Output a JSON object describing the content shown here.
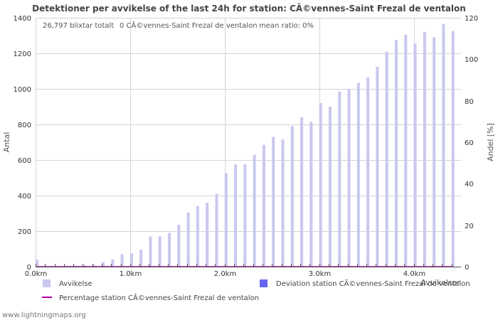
{
  "chart_data": {
    "type": "bar",
    "title": "Detektioner per avvikelse of the last 24h for station: CÃ©vennes-Saint Frezal de ventalon",
    "info": {
      "total": "26,797 blixtar totalt",
      "station": "0 CÃ©vennes-Saint Frezal de ventalon",
      "ratio": "mean ratio: 0%"
    },
    "xlabel": "Avvikelser",
    "ylabel": "Antal",
    "ylabel_right": "Andel [%]",
    "xlim": [
      0,
      4.5
    ],
    "ylim": [
      0,
      1400
    ],
    "ylim_right": [
      0,
      120
    ],
    "x_ticks": [
      {
        "value": 0,
        "label": "0.0km"
      },
      {
        "value": 1,
        "label": "1.0km"
      },
      {
        "value": 2,
        "label": "2.0km"
      },
      {
        "value": 3,
        "label": "3.0km"
      },
      {
        "value": 4,
        "label": "4.0km"
      }
    ],
    "y_ticks": [
      0,
      200,
      400,
      600,
      800,
      1000,
      1200,
      1400
    ],
    "y_ticks_right": [
      0,
      20,
      40,
      60,
      80,
      100,
      120
    ],
    "bar_width": 0.1,
    "x": [
      0.0,
      0.1,
      0.2,
      0.3,
      0.4,
      0.5,
      0.6,
      0.7,
      0.8,
      0.9,
      1.0,
      1.1,
      1.2,
      1.3,
      1.4,
      1.5,
      1.6,
      1.7,
      1.8,
      1.9,
      2.0,
      2.1,
      2.2,
      2.3,
      2.4,
      2.5,
      2.6,
      2.7,
      2.8,
      2.9,
      3.0,
      3.1,
      3.2,
      3.3,
      3.4,
      3.5,
      3.6,
      3.7,
      3.8,
      3.9,
      4.0,
      4.1,
      4.2,
      4.3,
      4.4
    ],
    "series": [
      {
        "name": "Avvikelse",
        "color": "#c8c8f0",
        "values": [
          40,
          3,
          3,
          4,
          6,
          10,
          12,
          25,
          42,
          70,
          75,
          95,
          170,
          170,
          190,
          235,
          305,
          340,
          360,
          410,
          525,
          575,
          575,
          630,
          685,
          730,
          715,
          790,
          840,
          815,
          920,
          900,
          985,
          1000,
          1035,
          1065,
          1125,
          1210,
          1275,
          1305,
          1255,
          1320,
          1290,
          1365,
          1325
        ]
      },
      {
        "name": "Deviation station CÃ©vennes-Saint Frezal de ventalon",
        "color": "#6464f0",
        "values": [
          0,
          0,
          0,
          0,
          0,
          0,
          0,
          0,
          0,
          0,
          0,
          0,
          0,
          0,
          0,
          0,
          0,
          0,
          0,
          0,
          0,
          0,
          0,
          0,
          0,
          0,
          0,
          0,
          0,
          0,
          0,
          0,
          0,
          0,
          0,
          0,
          0,
          0,
          0,
          0,
          0,
          0,
          0,
          0,
          0
        ]
      },
      {
        "name": "Percentage station CÃ©vennes-Saint Frezal de ventalon",
        "color": "#b000b0",
        "type": "line",
        "values": [
          0,
          0,
          0,
          0,
          0,
          0,
          0,
          0,
          0,
          0,
          0,
          0,
          0,
          0,
          0,
          0,
          0,
          0,
          0,
          0,
          0,
          0,
          0,
          0,
          0,
          0,
          0,
          0,
          0,
          0,
          0,
          0,
          0,
          0,
          0,
          0,
          0,
          0,
          0,
          0,
          0,
          0,
          0,
          0,
          0
        ]
      }
    ]
  },
  "footer": "www.lightningmaps.org"
}
